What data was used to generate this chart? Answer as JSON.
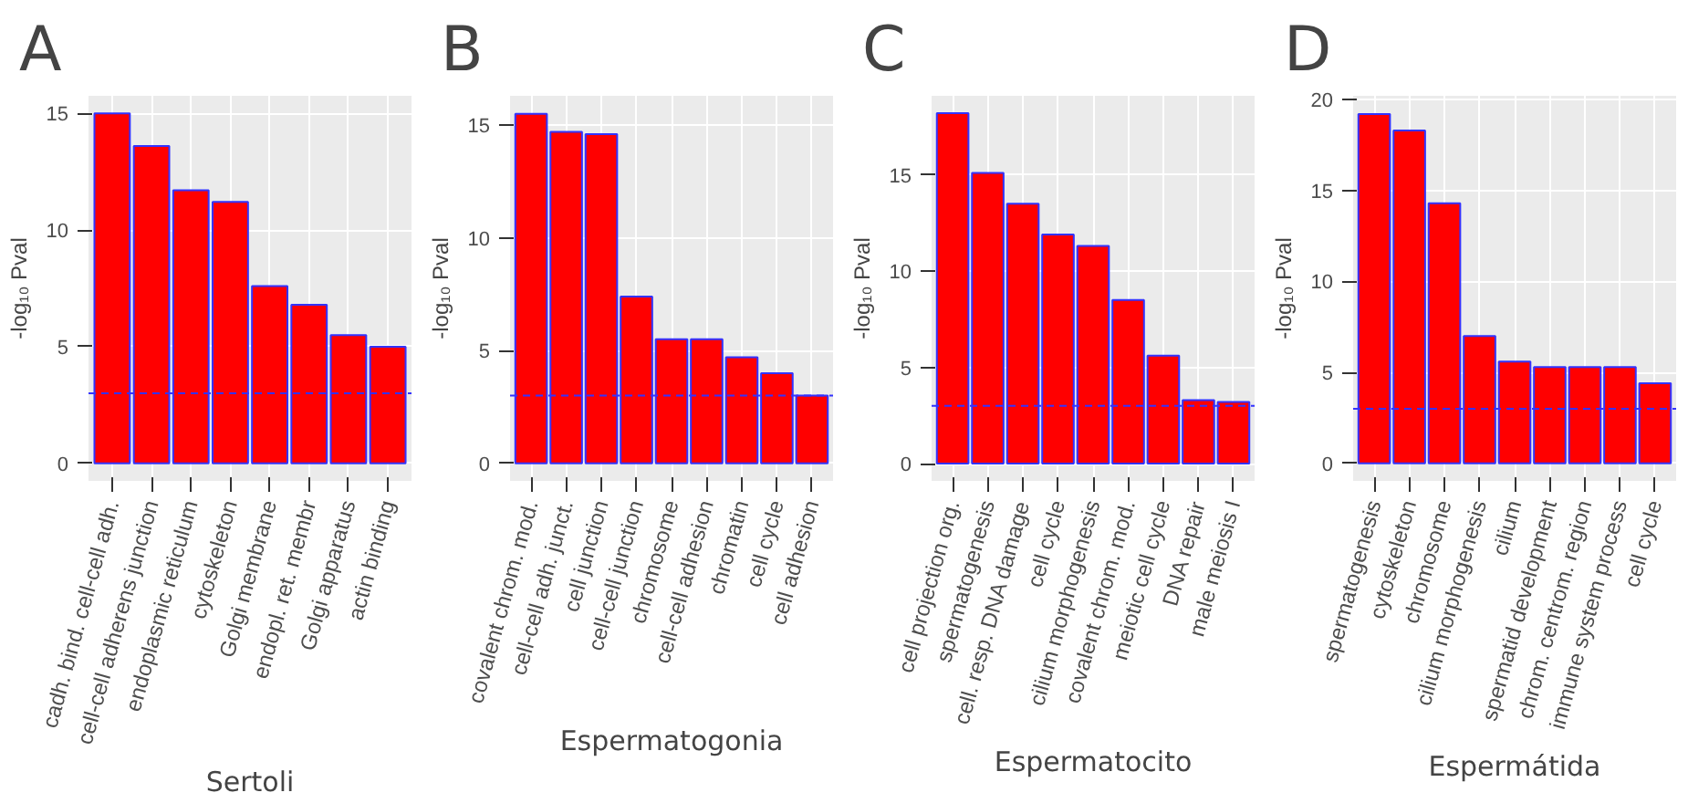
{
  "chart_data": [
    {
      "type": "bar",
      "title": "A",
      "xlabel": "Sertoli",
      "ylabel": "-log₁₀ Pval",
      "categories": [
        "cadh. bind. cell-cell adh.",
        "cell-cell adherens junction",
        "endoplasmic reticulum",
        "cytoskeleton",
        "Golgi membrane",
        "endopl. ret. membr",
        "Golgi apparatus",
        "actin binding"
      ],
      "values": [
        15.0,
        13.6,
        11.7,
        11.2,
        7.6,
        6.8,
        5.5,
        5.0
      ],
      "color": "#ff0000",
      "ylim": [
        -0.75,
        15.75
      ],
      "yticks": [
        0,
        5,
        10,
        15
      ],
      "grid": true,
      "ref_lines": [
        {
          "axis": "y",
          "value": 3,
          "color": "#3333ff",
          "line_style": "dashed"
        }
      ]
    },
    {
      "type": "bar",
      "title": "B",
      "xlabel": "Espermatogonia",
      "ylabel": "-log₁₀ Pval",
      "categories": [
        "covalent chrom. mod.",
        "cell-cell adh. junct.",
        "cell junction",
        "cell-cell junction",
        "chromosome",
        "cell-cell adhesion",
        "chromatin",
        "cell cycle",
        "cell adhesion"
      ],
      "values": [
        15.5,
        14.7,
        14.6,
        7.4,
        5.5,
        5.5,
        4.7,
        4.0,
        3.0
      ],
      "color": "#ff0000",
      "ylim": [
        -0.78,
        16.3
      ],
      "yticks": [
        0,
        5,
        10,
        15
      ],
      "grid": true,
      "ref_lines": [
        {
          "axis": "y",
          "value": 3,
          "color": "#3333ff",
          "line_style": "dashed"
        }
      ]
    },
    {
      "type": "bar",
      "title": "C",
      "xlabel": "Espermatocito",
      "ylabel": "-log₁₀ Pval",
      "categories": [
        "cell projection org.",
        "spermatogenesis",
        "cell. resp. DNA damage",
        "cell cycle",
        "cilium morphogenesis",
        "covalent chrom. mod.",
        "meiotic cell cycle",
        "DNA repair",
        "male meiosis I"
      ],
      "values": [
        18.2,
        15.1,
        13.5,
        11.9,
        11.3,
        8.5,
        5.6,
        3.3,
        3.2
      ],
      "color": "#ff0000",
      "ylim": [
        -0.9,
        19.1
      ],
      "yticks": [
        0,
        5,
        10,
        15
      ],
      "grid": true,
      "ref_lines": [
        {
          "axis": "y",
          "value": 3,
          "color": "#3333ff",
          "line_style": "dashed"
        }
      ]
    },
    {
      "type": "bar",
      "title": "D",
      "xlabel": "Espermátida",
      "ylabel": "-log₁₀ Pval",
      "categories": [
        "spermatogenesis",
        "cytoskeleton",
        "chromosome",
        "cilium morphogenesis",
        "cilium",
        "spermatid development",
        "chrom. centrom. region",
        "immune system process",
        "cell cycle"
      ],
      "values": [
        19.2,
        18.3,
        14.3,
        7.0,
        5.6,
        5.3,
        5.3,
        5.3,
        4.4
      ],
      "color": "#ff0000",
      "ylim": [
        -0.96,
        20.2
      ],
      "yticks": [
        0,
        5,
        10,
        15,
        20
      ],
      "grid": true,
      "ref_lines": [
        {
          "axis": "y",
          "value": 3,
          "color": "#3333ff",
          "line_style": "dashed"
        }
      ]
    }
  ]
}
